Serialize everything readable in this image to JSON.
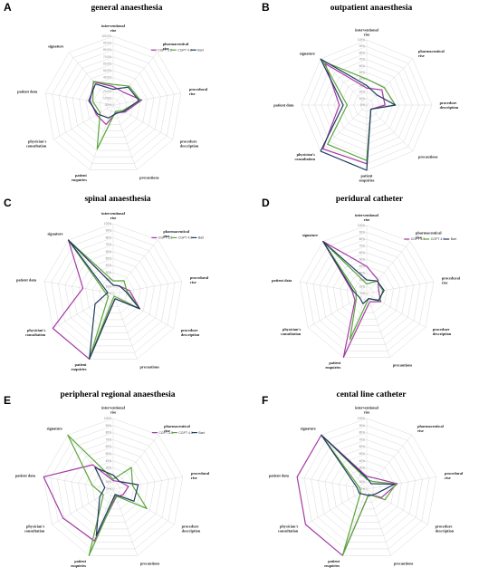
{
  "colors": {
    "gpt35": "#a53aa5",
    "gpt40": "#5aa63a",
    "bart": "#1f3b60",
    "grid": "#d9d9d9"
  },
  "panels": [
    {
      "letter": "A",
      "title": "general anaesthesia"
    },
    {
      "letter": "B",
      "title": "outpatient anaesthesia"
    },
    {
      "letter": "C",
      "title": "spinal anaesthesia"
    },
    {
      "letter": "D",
      "title": "peridural catheter"
    },
    {
      "letter": "E",
      "title": "peripheral regional anaesthesia"
    },
    {
      "letter": "F",
      "title": "cental line catheter"
    }
  ],
  "chart_data": [
    {
      "type": "radar",
      "panel": "A",
      "title": "general anaesthesia",
      "axes": [
        "interventional rise",
        "pharmaceutical rise",
        "procedural rise",
        "procedure description",
        "precautions",
        "patient enquiries",
        "physician's consultation",
        "patient data",
        "signature"
      ],
      "tick_labels": [
        "0.0%",
        "10.0%",
        "20.0%",
        "30.0%",
        "40.0%",
        "50.0%",
        "60.0%",
        "70.0%",
        "80.0%",
        "90.0%",
        "100.0%"
      ],
      "rlim": [
        0,
        100
      ],
      "legend": "top-right",
      "series": [
        {
          "name": "CGPT 3.5",
          "values": [
            27,
            24,
            42,
            20,
            12,
            30,
            28,
            34,
            44
          ]
        },
        {
          "name": "CGPT 4.0",
          "values": [
            30,
            36,
            40,
            16,
            10,
            68,
            22,
            30,
            45
          ]
        },
        {
          "name": "Bart",
          "values": [
            23,
            34,
            38,
            18,
            13,
            20,
            26,
            36,
            40
          ]
        }
      ]
    },
    {
      "type": "radar",
      "panel": "B",
      "title": "outpatient anaesthesia",
      "axes": [
        "interventional rise",
        "pharmaceutical rise",
        "procedure description",
        "precautions",
        "patient enquiries",
        "physician's consultation",
        "patient data",
        "signature"
      ],
      "tick_labels": [
        "0%",
        "10%",
        "20%",
        "30%",
        "40%",
        "50%",
        "60%",
        "70%",
        "80%",
        "90%",
        "100%"
      ],
      "rlim": [
        0,
        100
      ],
      "series": [
        {
          "name": "CGPT 3.5",
          "values": [
            26,
            33,
            28,
            9,
            90,
            95,
            42,
            90
          ]
        },
        {
          "name": "CGPT 4.0",
          "values": [
            40,
            38,
            44,
            9,
            85,
            85,
            30,
            95
          ]
        },
        {
          "name": "Bart",
          "values": [
            30,
            22,
            44,
            9,
            100,
            100,
            36,
            100
          ]
        }
      ]
    },
    {
      "type": "radar",
      "panel": "C",
      "title": "spinal anaesthesia",
      "axes": [
        "interventional rise",
        "pharmaceutical rise",
        "procedural rise",
        "procedure description",
        "precautions",
        "patient enquiries",
        "physician's consultation",
        "patient data",
        "signature"
      ],
      "tick_labels": [
        "0%",
        "10%",
        "20%",
        "30%",
        "40%",
        "50%",
        "60%",
        "70%",
        "80%",
        "90%",
        "100%"
      ],
      "rlim": [
        0,
        100
      ],
      "legend": "top-right",
      "series": [
        {
          "name": "CGPT 3.5",
          "values": [
            12,
            14,
            24,
            44,
            8,
            100,
            100,
            44,
            100
          ]
        },
        {
          "name": "CGPT 4.0",
          "values": [
            18,
            24,
            20,
            44,
            4,
            100,
            8,
            12,
            100
          ]
        },
        {
          "name": "Bart",
          "values": [
            12,
            14,
            18,
            44,
            8,
            100,
            30,
            8,
            100
          ]
        }
      ]
    },
    {
      "type": "radar",
      "panel": "D",
      "title": "peridural catheter",
      "axes": [
        "interventional rise",
        "pharmaceutical rise",
        "procedural rise",
        "procedure description",
        "precautions",
        "patient enquiries",
        "physician's consultation",
        "patient data",
        "signature"
      ],
      "tick_labels": [
        "0%",
        "10%",
        "20%",
        "30%",
        "40%",
        "50%",
        "60%",
        "70%",
        "80%",
        "90%",
        "100%"
      ],
      "rlim": [
        0,
        100
      ],
      "legend": "top-right",
      "series": [
        {
          "name": "CGPT 3.5",
          "values": [
            40,
            26,
            18,
            24,
            13,
            100,
            20,
            22,
            100
          ]
        },
        {
          "name": "CGPT 4.0",
          "values": [
            14,
            24,
            24,
            22,
            8,
            72,
            18,
            16,
            100
          ]
        },
        {
          "name": "Bart",
          "values": [
            20,
            24,
            26,
            20,
            8,
            16,
            12,
            20,
            100
          ]
        }
      ]
    },
    {
      "type": "radar",
      "panel": "E",
      "title": "peripheral regional anaesthesia",
      "axes": [
        "interventional rise",
        "pharmaceutical rise",
        "procedural rise",
        "procedure description",
        "precautions",
        "patient enquiries",
        "physician's consultation",
        "patient data",
        "signature"
      ],
      "tick_labels": [
        "0%",
        "10%",
        "20%",
        "30%",
        "40%",
        "50%",
        "60%",
        "70%",
        "80%",
        "90%",
        "100%"
      ],
      "rlim": [
        0,
        100
      ],
      "legend": "top-right",
      "series": [
        {
          "name": "CGPT 3.5",
          "values": [
            12,
            14,
            22,
            16,
            12,
            78,
            82,
            100,
            45
          ]
        },
        {
          "name": "CGPT 4.0",
          "values": [
            14,
            40,
            28,
            55,
            10,
            100,
            16,
            30,
            100
          ]
        },
        {
          "name": "Bart",
          "values": [
            20,
            14,
            36,
            34,
            8,
            70,
            22,
            12,
            40
          ]
        }
      ]
    },
    {
      "type": "radar",
      "panel": "F",
      "title": "cental line catheter",
      "axes": [
        "interventional rise",
        "pharmaceutical rise",
        "procedural rise",
        "procedure description",
        "precautions",
        "patient enquiries",
        "physician's consultation",
        "patient data",
        "signature"
      ],
      "tick_labels": [
        "0%",
        "10%",
        "20%",
        "30%",
        "40%",
        "50%",
        "60%",
        "70%",
        "80%",
        "90%",
        "100%"
      ],
      "rlim": [
        0,
        100
      ],
      "series": [
        {
          "name": "CGPT 3.5",
          "values": [
            18,
            20,
            44,
            24,
            8,
            100,
            100,
            100,
            100
          ]
        },
        {
          "name": "CGPT 4.0",
          "values": [
            14,
            14,
            42,
            30,
            8,
            100,
            10,
            10,
            100
          ]
        },
        {
          "name": "Bart",
          "values": [
            16,
            10,
            40,
            14,
            10,
            8,
            12,
            14,
            100
          ]
        }
      ]
    }
  ]
}
